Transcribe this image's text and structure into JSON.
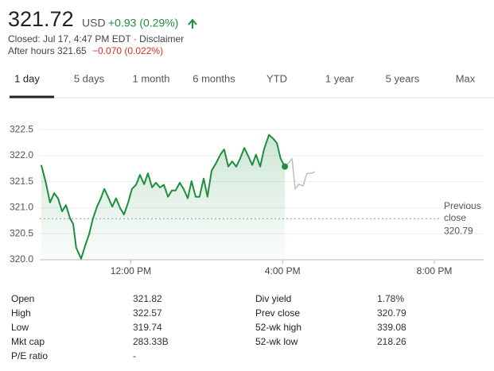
{
  "header": {
    "price": "321.72",
    "currency": "USD",
    "change": "+0.93 (0.29%)",
    "closed": "Closed: Jul 17, 4:47 PM EDT · Disclaimer",
    "after_hours": "After hours 321.65",
    "after_change": "−0.070 (0.022%)"
  },
  "tabs": [
    "1 day",
    "5 days",
    "1 month",
    "6 months",
    "YTD",
    "1 year",
    "5 years",
    "Max"
  ],
  "chart_data": {
    "type": "line",
    "series": [
      {
        "color": "#1e8e3e",
        "x": [
          9.64,
          9.75,
          9.87,
          9.98,
          10.08,
          10.19,
          10.29,
          10.4,
          10.48,
          10.56,
          10.69,
          10.79,
          10.9,
          11.0,
          11.11,
          11.21,
          11.3,
          11.4,
          11.51,
          11.61,
          11.72,
          11.82,
          11.93,
          12.03,
          12.14,
          12.24,
          12.35,
          12.45,
          12.56,
          12.66,
          12.77,
          12.87,
          12.98,
          13.08,
          13.18,
          13.29,
          13.39,
          13.5,
          13.6,
          13.71,
          13.81,
          13.92,
          14.02,
          14.13,
          14.25,
          14.36,
          14.46,
          14.57,
          14.67,
          14.78,
          14.88,
          14.99,
          15.09,
          15.2,
          15.3,
          15.41,
          15.51,
          15.64,
          15.76,
          15.85,
          15.95,
          16.06
        ],
        "values": [
          321.82,
          321.51,
          321.1,
          321.28,
          321.18,
          320.93,
          321.05,
          320.79,
          320.69,
          320.23,
          320.02,
          320.26,
          320.49,
          320.79,
          321.02,
          321.18,
          321.36,
          321.21,
          321.02,
          321.18,
          320.99,
          320.87,
          321.1,
          321.36,
          321.44,
          321.63,
          321.45,
          321.66,
          321.39,
          321.48,
          321.39,
          321.44,
          321.21,
          321.33,
          321.33,
          321.48,
          321.36,
          321.18,
          321.51,
          321.21,
          321.21,
          321.56,
          321.21,
          321.71,
          321.86,
          322.02,
          322.12,
          321.79,
          321.89,
          321.79,
          321.94,
          322.15,
          322.0,
          321.82,
          322.02,
          321.79,
          322.12,
          322.4,
          322.32,
          322.24,
          321.94,
          321.79
        ]
      },
      {
        "color": "#bdbdbd",
        "x": [
          16.06,
          16.16,
          16.25,
          16.33,
          16.43,
          16.54,
          16.64,
          16.75,
          16.85
        ],
        "values": [
          321.79,
          321.86,
          321.94,
          321.36,
          321.45,
          321.42,
          321.66,
          321.66,
          321.69
        ]
      }
    ],
    "previous_close_label": "Previous close",
    "previous_close": 320.79,
    "xlim": [
      9.6,
      21.3
    ],
    "xticks": [
      {
        "value": 12,
        "label": "12:00 PM"
      },
      {
        "value": 16,
        "label": "4:00 PM"
      },
      {
        "value": 20,
        "label": "8:00 PM"
      }
    ],
    "ylim": [
      320,
      322.7
    ],
    "yticks": [
      322.5,
      {
        "value": 322,
        "label": "322.0"
      },
      321.5,
      {
        "value": 321,
        "label": "321.0"
      },
      320.5,
      {
        "value": 320,
        "label": "320.0"
      }
    ],
    "grid": true
  },
  "stats": {
    "left": [
      [
        "Open",
        "321.82"
      ],
      [
        "High",
        "322.57"
      ],
      [
        "Low",
        "319.74"
      ],
      [
        "Mkt cap",
        "283.33B"
      ],
      [
        "P/E ratio",
        "-"
      ]
    ],
    "right": [
      [
        "Div yield",
        "1.78%"
      ],
      [
        "Prev close",
        "320.79"
      ],
      [
        "52-wk high",
        "339.08"
      ],
      [
        "52-wk low",
        "218.26"
      ]
    ]
  }
}
